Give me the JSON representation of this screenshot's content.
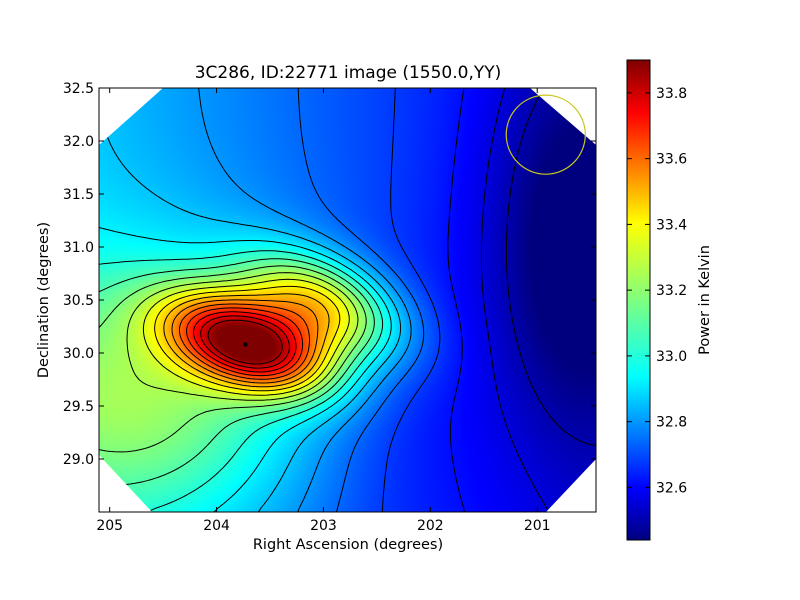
{
  "chart_data": {
    "type": "heatmap",
    "title": "3C286, ID:22771 image (1550.0,YY)",
    "xlabel": "Right Ascension (degrees)",
    "ylabel": "Declination (degrees)",
    "xlim": [
      205.1,
      200.45
    ],
    "ylim": [
      28.5,
      32.5
    ],
    "x_ticks": [
      205,
      204,
      203,
      202,
      201
    ],
    "y_ticks": [
      29.0,
      29.5,
      30.0,
      30.5,
      31.0,
      31.5,
      32.0,
      32.5
    ],
    "x_tick_labels": [
      "205",
      "204",
      "203",
      "202",
      "201"
    ],
    "y_tick_labels": [
      "29.0",
      "29.5",
      "30.0",
      "30.5",
      "31.0",
      "31.5",
      "32.0",
      "32.5"
    ],
    "colorbar": {
      "label": "Power in Kelvin",
      "range": [
        32.44,
        33.9
      ],
      "ticks": [
        32.6,
        32.8,
        33.0,
        33.2,
        33.4,
        33.6,
        33.8
      ],
      "tick_labels": [
        "32.6",
        "32.8",
        "33.0",
        "33.2",
        "33.4",
        "33.6",
        "33.8"
      ],
      "colormap": "jet"
    },
    "peak": {
      "ra": 203.73,
      "dec": 30.08,
      "value": 33.88
    },
    "beam_circle": {
      "ra": 200.92,
      "dec": 32.06,
      "radius_deg": 0.37,
      "color": "#c8c81e"
    },
    "contours": {
      "color": "#000000",
      "count": 21
    }
  }
}
